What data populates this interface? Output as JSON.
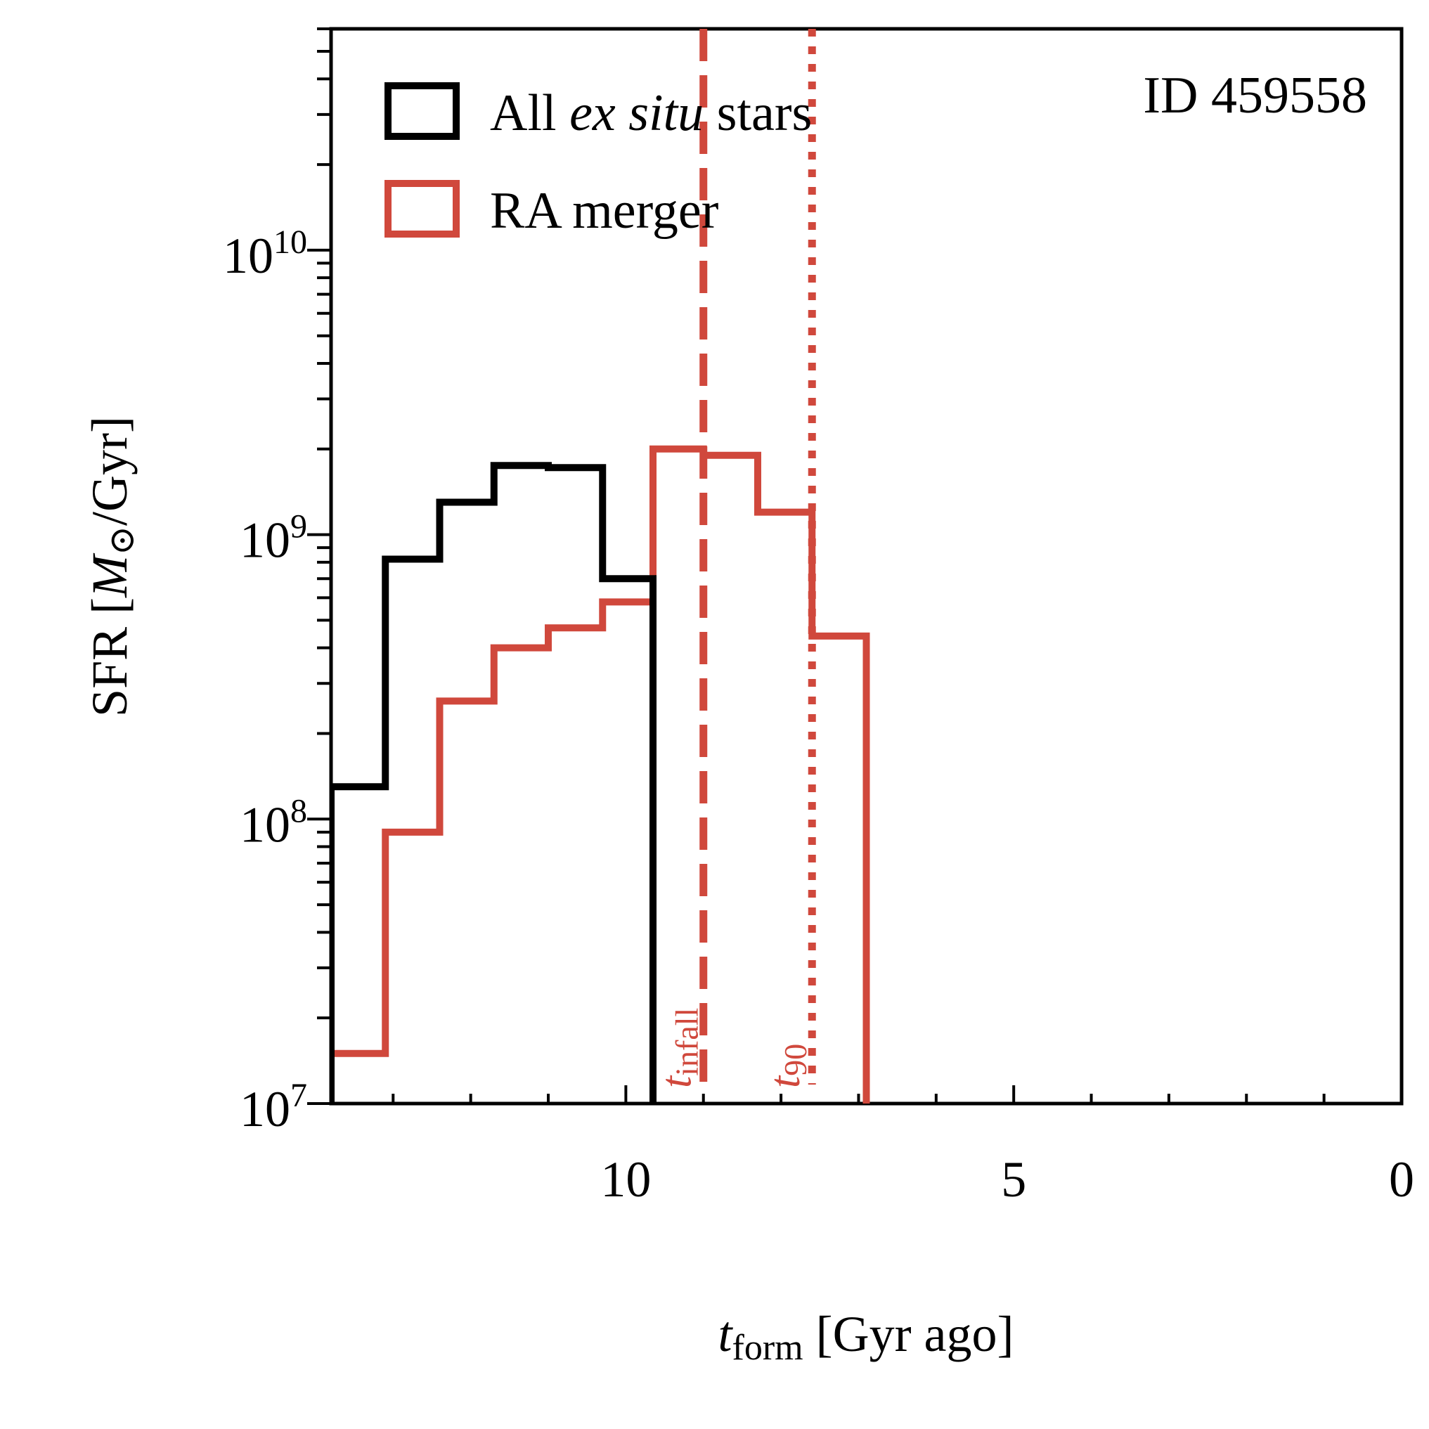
{
  "chart_data": {
    "type": "step-histogram",
    "title": "",
    "annotation_id": "ID 459558",
    "xlabel": {
      "var": "t",
      "sub": "form",
      "unit": " [Gyr ago]"
    },
    "ylabel": {
      "prefix": "SFR [",
      "var": "M",
      "sym": "⊙",
      "suffix": "/Gyr]"
    },
    "xlim": [
      13.8,
      0
    ],
    "ylim": [
      10000000.0,
      60000000000.0
    ],
    "yscale": "log",
    "x_ticks": [
      {
        "v": 10,
        "label": "10"
      },
      {
        "v": 5,
        "label": "5"
      },
      {
        "v": 0,
        "label": "0"
      }
    ],
    "y_ticks": [
      {
        "v": 10000000.0,
        "base": "10",
        "exp": "7"
      },
      {
        "v": 100000000.0,
        "base": "10",
        "exp": "8"
      },
      {
        "v": 1000000000.0,
        "base": "10",
        "exp": "9"
      },
      {
        "v": 10000000000.0,
        "base": "10",
        "exp": "10"
      }
    ],
    "bin_edges": [
      13.8,
      13.1,
      12.4,
      11.7,
      11.0,
      10.3,
      9.65,
      9.0,
      8.3,
      7.6,
      6.9
    ],
    "series": [
      {
        "name": "All ex situ stars",
        "legend": {
          "pre": "All ",
          "ital": "ex situ",
          "post": " stars"
        },
        "color": "#000000",
        "values": [
          130000000.0,
          820000000.0,
          1300000000.0,
          1750000000.0,
          1720000000.0,
          700000000.0
        ]
      },
      {
        "name": "RA merger",
        "legend": {
          "pre": "RA merger",
          "ital": "",
          "post": ""
        },
        "color": "#d0483c",
        "values": [
          15000000.0,
          90000000.0,
          260000000.0,
          400000000.0,
          470000000.0,
          580000000.0,
          2000000000.0,
          1900000000.0,
          1200000000.0,
          440000000.0
        ]
      }
    ],
    "vlines": [
      {
        "name": "t_infall",
        "x": 9.0,
        "style": "dashed",
        "label_var": "t",
        "label_sub": "infall",
        "color": "#d0483c"
      },
      {
        "name": "t_90",
        "x": 7.6,
        "style": "dotted",
        "label_var": "t",
        "label_sub": "90",
        "color": "#d0483c"
      }
    ]
  }
}
